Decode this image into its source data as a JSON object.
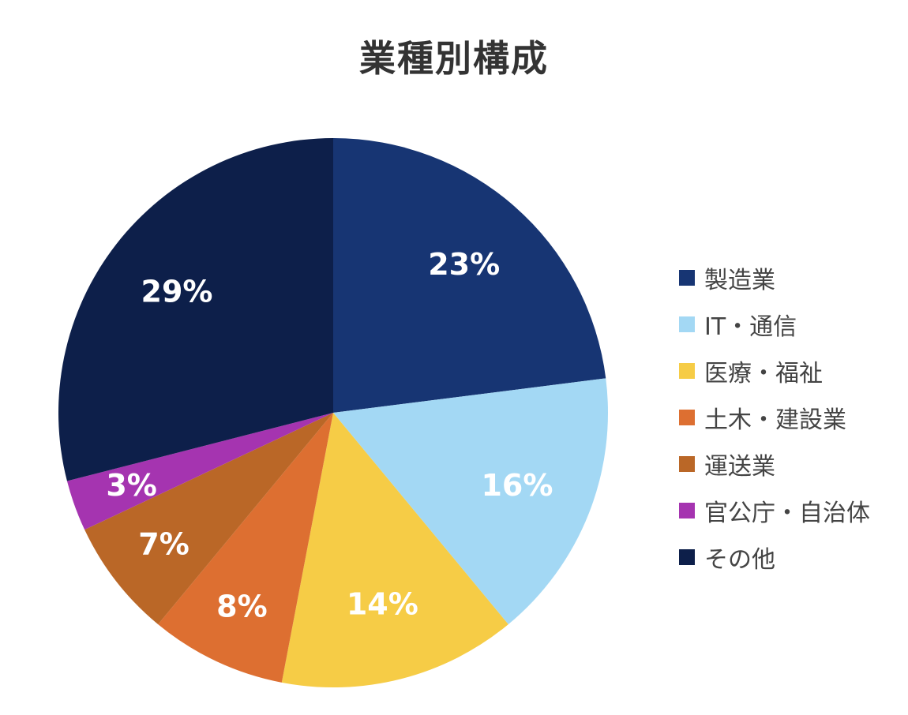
{
  "chart_data": {
    "type": "pie",
    "title": "業種別構成",
    "legend_position": "right",
    "slices": [
      {
        "name": "製造業",
        "value": 23,
        "label": "23%",
        "color": "#173573"
      },
      {
        "name": "IT・通信",
        "value": 16,
        "label": "16%",
        "color": "#a3d8f4"
      },
      {
        "name": "医療・福祉",
        "value": 14,
        "label": "14%",
        "color": "#f6cc46"
      },
      {
        "name": "土木・建設業",
        "value": 8,
        "label": "8%",
        "color": "#dd6f31"
      },
      {
        "name": "運送業",
        "value": 7,
        "label": "7%",
        "color": "#ba6727"
      },
      {
        "name": "官公庁・自治体",
        "value": 3,
        "label": "3%",
        "color": "#a534b0"
      },
      {
        "name": "その他",
        "value": 29,
        "label": "29%",
        "color": "#0d1f4a"
      }
    ]
  }
}
